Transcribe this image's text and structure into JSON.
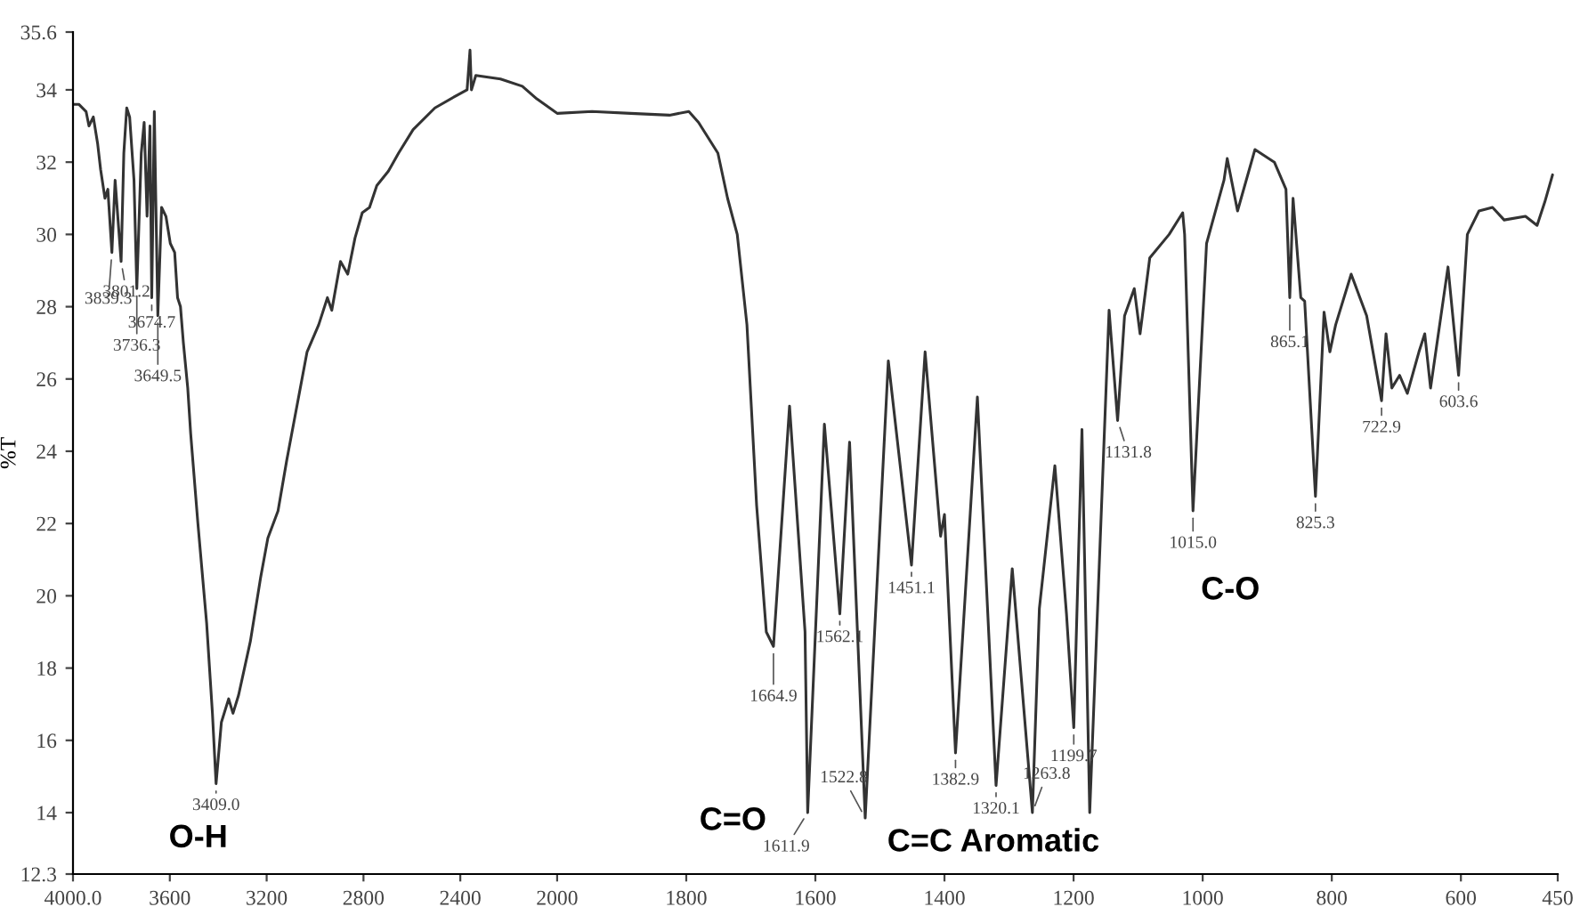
{
  "chart_data": [
    {
      "type": "line",
      "ylabel": "%T",
      "xlim": [
        4000,
        2000
      ],
      "ylim": [
        12.3,
        35.6
      ],
      "xticks": [
        {
          "value": 4000,
          "label": "4000.0"
        },
        3600,
        3200,
        2800,
        2400,
        2000
      ],
      "yticks": [
        12.3,
        14,
        16,
        18,
        20,
        22,
        24,
        26,
        28,
        30,
        32,
        34,
        35.6
      ],
      "grid": false,
      "legend": false,
      "marker": "none",
      "line_style": "solid",
      "series": [
        {
          "color": "#333333",
          "x": [
            4000,
            3976,
            3946,
            3934,
            3916,
            3898,
            3886,
            3868,
            3856,
            3839.3,
            3826,
            3801.2,
            3790,
            3778,
            3766,
            3748,
            3736.3,
            3718,
            3706,
            3694,
            3682,
            3674.7,
            3664,
            3658,
            3649.5,
            3634,
            3616,
            3598,
            3580,
            3568,
            3556,
            3544,
            3526,
            3514,
            3484,
            3448,
            3424,
            3409,
            3387,
            3357,
            3339,
            3316,
            3267,
            3225,
            3195,
            3153,
            3117,
            3075,
            3033,
            2985,
            2949,
            2931,
            2895,
            2865,
            2835,
            2805,
            2775,
            2745,
            2697,
            2655,
            2595,
            2505,
            2414,
            2372,
            2360,
            2354,
            2336,
            2234,
            2144,
            2084,
            2000
          ],
          "values": [
            33.6,
            33.6,
            33.4,
            33.0,
            33.25,
            32.5,
            31.8,
            31.0,
            31.25,
            29.5,
            31.5,
            29.25,
            32.25,
            33.5,
            33.25,
            31.5,
            28.5,
            32.25,
            33.1,
            30.5,
            33.0,
            28.25,
            33.4,
            31.0,
            27.75,
            30.75,
            30.5,
            29.75,
            29.5,
            28.25,
            28.0,
            27.0,
            25.75,
            24.5,
            22.0,
            19.25,
            16.75,
            14.8,
            16.5,
            17.15,
            16.75,
            17.25,
            18.75,
            20.5,
            21.6,
            22.35,
            23.75,
            25.25,
            26.75,
            27.5,
            28.25,
            27.9,
            29.25,
            28.9,
            29.9,
            30.6,
            30.75,
            31.35,
            31.75,
            32.25,
            32.9,
            33.5,
            33.85,
            34.0,
            35.1,
            34.0,
            34.4,
            34.3,
            34.1,
            33.75,
            33.35
          ]
        }
      ],
      "annotations": [
        {
          "text": "3801.2",
          "x": 3801.2,
          "y": 29.25
        },
        {
          "text": "3839.3",
          "x": 3839.3,
          "y": 29.5
        },
        {
          "text": "3674.7",
          "x": 3674.7,
          "y": 28.25
        },
        {
          "text": "3736.3",
          "x": 3736.3,
          "y": 28.5
        },
        {
          "text": "3649.5",
          "x": 3649.5,
          "y": 27.75
        },
        {
          "text": "3409.0",
          "x": 3409.0,
          "y": 14.8
        },
        {
          "text": "O-H",
          "x": 3409.0,
          "y": 14.8
        }
      ]
    },
    {
      "type": "line",
      "tick_labels": "x",
      "xlim": [
        2000,
        450
      ],
      "ylim": [
        12.3,
        35.6
      ],
      "xticks": [
        1800,
        1600,
        1400,
        1200,
        1000,
        800,
        600,
        450
      ],
      "grid": false,
      "legend": false,
      "marker": "none",
      "line_style": "solid",
      "series": [
        {
          "color": "#333333",
          "x": [
            2000,
            1946,
            1886,
            1826,
            1796,
            1781,
            1751,
            1736,
            1721,
            1706,
            1691,
            1676,
            1664.9,
            1640,
            1616,
            1611.9,
            1586,
            1562.1,
            1547,
            1522.8,
            1487,
            1451.1,
            1430,
            1406,
            1400,
            1382.9,
            1349,
            1320.1,
            1295,
            1263.8,
            1253,
            1229,
            1211,
            1199.7,
            1187,
            1175,
            1145,
            1131.8,
            1121,
            1106,
            1097,
            1082,
            1052,
            1031,
            1028,
            1015.0,
            994,
            967,
            962,
            946,
            919,
            889,
            871,
            865.1,
            860,
            848,
            842,
            825.3,
            812,
            803,
            794,
            770,
            746,
            722.9,
            716,
            707,
            695,
            683,
            665,
            656,
            647,
            620,
            603.6,
            590,
            572,
            551,
            533,
            500,
            482,
            470,
            458
          ],
          "values": [
            33.35,
            33.4,
            33.35,
            33.3,
            33.4,
            33.1,
            32.25,
            31.0,
            30.0,
            27.5,
            22.5,
            19.0,
            18.6,
            25.25,
            19.0,
            14.0,
            24.75,
            19.5,
            24.25,
            13.85,
            26.5,
            20.85,
            26.75,
            21.65,
            22.25,
            15.65,
            25.5,
            14.75,
            20.75,
            14.0,
            19.65,
            23.6,
            19.5,
            16.35,
            24.6,
            14.0,
            27.9,
            24.85,
            27.75,
            28.5,
            27.25,
            29.35,
            30.0,
            30.6,
            30.0,
            22.35,
            29.75,
            31.5,
            32.1,
            30.65,
            32.35,
            32.0,
            31.25,
            28.25,
            31.0,
            28.25,
            28.15,
            22.75,
            27.85,
            26.75,
            27.5,
            28.9,
            27.75,
            25.4,
            27.25,
            25.75,
            26.1,
            25.6,
            26.75,
            27.25,
            25.75,
            29.1,
            26.1,
            30.0,
            30.65,
            30.75,
            30.4,
            30.5,
            30.25,
            30.9,
            31.65
          ]
        }
      ],
      "annotations": [
        {
          "text": "1664.9",
          "x": 1664.9,
          "y": 18.6
        },
        {
          "text": "1611.9",
          "x": 1611.9,
          "y": 14.0
        },
        {
          "text": "1562.1",
          "x": 1562.1,
          "y": 19.5
        },
        {
          "text": "1522.8",
          "x": 1522.8,
          "y": 13.85
        },
        {
          "text": "1451.1",
          "x": 1451.1,
          "y": 20.85
        },
        {
          "text": "1382.9",
          "x": 1382.9,
          "y": 15.65
        },
        {
          "text": "1320.1",
          "x": 1320.1,
          "y": 14.75
        },
        {
          "text": "1263.8",
          "x": 1263.8,
          "y": 14.0
        },
        {
          "text": "1199.7",
          "x": 1199.7,
          "y": 16.35
        },
        {
          "text": "1131.8",
          "x": 1131.8,
          "y": 24.85
        },
        {
          "text": "1015.0",
          "x": 1015.0,
          "y": 22.35
        },
        {
          "text": "865.1",
          "x": 865.1,
          "y": 28.25
        },
        {
          "text": "825.3",
          "x": 825.3,
          "y": 22.75
        },
        {
          "text": "722.9",
          "x": 722.9,
          "y": 25.4
        },
        {
          "text": "603.6",
          "x": 603.6,
          "y": 26.1
        },
        {
          "text": "C=O",
          "x": 1611.9,
          "y": 14.0
        },
        {
          "text": "C=C Aromatic",
          "x": 1522.8,
          "y": 13.85
        },
        {
          "text": "C-O",
          "x": 1015.0,
          "y": 22.35
        }
      ]
    }
  ]
}
